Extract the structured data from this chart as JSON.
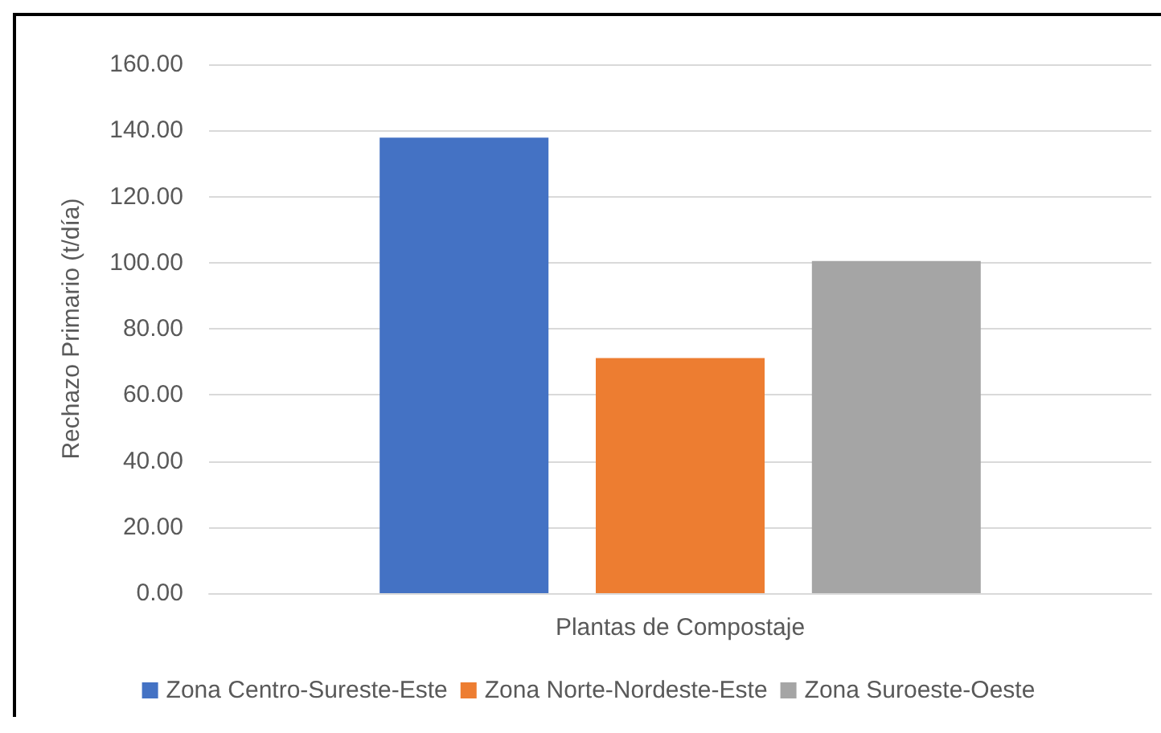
{
  "chart_data": {
    "type": "bar",
    "ylabel": "Rechazo Primario (t/día)",
    "categories": [
      "Plantas de Compostaje"
    ],
    "series": [
      {
        "name": "Zona Centro-Sureste-Este",
        "color": "#4472c4",
        "values": [
          137.8
        ]
      },
      {
        "name": "Zona Norte-Nordeste-Este",
        "color": "#ed7d31",
        "values": [
          71.1
        ]
      },
      {
        "name": "Zona Suroeste-Oeste",
        "color": "#a5a5a5",
        "values": [
          100.5
        ]
      }
    ],
    "ylim": [
      0,
      160
    ],
    "yticks": [
      {
        "value": 0,
        "label": "0.00"
      },
      {
        "value": 20,
        "label": "20.00"
      },
      {
        "value": 40,
        "label": "40.00"
      },
      {
        "value": 60,
        "label": "60.00"
      },
      {
        "value": 80,
        "label": "80.00"
      },
      {
        "value": 100,
        "label": "100.00"
      },
      {
        "value": 120,
        "label": "120.00"
      },
      {
        "value": 140,
        "label": "140.00"
      },
      {
        "value": 160,
        "label": "160.00"
      }
    ],
    "grid": "y",
    "legend": "bottom"
  }
}
